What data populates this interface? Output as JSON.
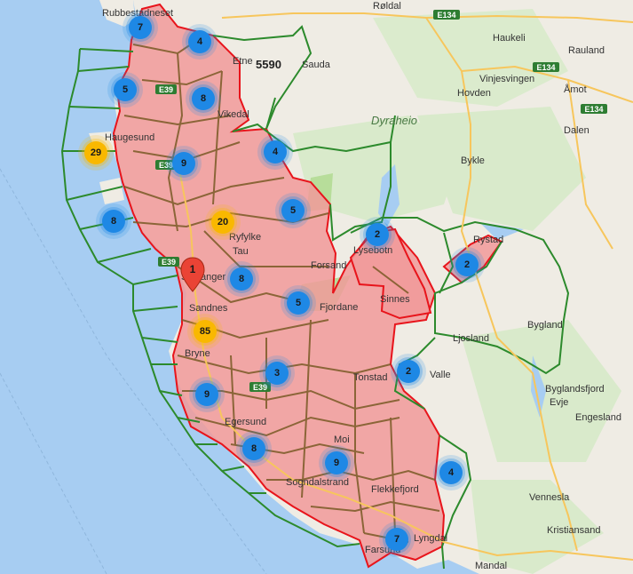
{
  "map": {
    "colors": {
      "sea": "#a7cdf2",
      "land": "#efece4",
      "forest": "#c8e2b4",
      "region_fill": "#f19a9a",
      "red_border": "#e8141b",
      "green_border": "#2c8a2c",
      "cluster_blue": "#1e88e5",
      "cluster_yellow": "#f9b800"
    },
    "count_label": "5590",
    "place_labels": [
      {
        "name": "Rubbestadneset"
      },
      {
        "name": "Røldal"
      },
      {
        "name": "Haukeli"
      },
      {
        "name": "Rauland"
      },
      {
        "name": "Sauda"
      },
      {
        "name": "Etne"
      },
      {
        "name": "Vinjesvingen"
      },
      {
        "name": "Åmot"
      },
      {
        "name": "Hovden"
      },
      {
        "name": "Vikedal"
      },
      {
        "name": "Dyraheio"
      },
      {
        "name": "Dalen"
      },
      {
        "name": "Haugesund"
      },
      {
        "name": "Bykle"
      },
      {
        "name": "Ryfylke"
      },
      {
        "name": "Rystad"
      },
      {
        "name": "Lysebotn"
      },
      {
        "name": "Tau"
      },
      {
        "name": "Forsand"
      },
      {
        "name": "Stavanger"
      },
      {
        "name": "Sandnes"
      },
      {
        "name": "Sinnes"
      },
      {
        "name": "Ljosland"
      },
      {
        "name": "Bygland"
      },
      {
        "name": "Bryne"
      },
      {
        "name": "Tonstad"
      },
      {
        "name": "Valle"
      },
      {
        "name": "Byglandsfjord"
      },
      {
        "name": "Evje"
      },
      {
        "name": "Egersund"
      },
      {
        "name": "Moi"
      },
      {
        "name": "Engesland"
      },
      {
        "name": "Sogndalstrand"
      },
      {
        "name": "Flekkefjord"
      },
      {
        "name": "Vennesla"
      },
      {
        "name": "Lyngdal"
      },
      {
        "name": "Kristiansand"
      },
      {
        "name": "Farsund"
      },
      {
        "name": "Mandal"
      },
      {
        "name": "Fjordane"
      }
    ],
    "road_shields": [
      "E134",
      "E134",
      "E134",
      "E39",
      "E39",
      "E39",
      "E39"
    ],
    "marker_label": "1",
    "clusters": [
      {
        "count": "7",
        "color": "blue"
      },
      {
        "count": "4",
        "color": "blue"
      },
      {
        "count": "5",
        "color": "blue"
      },
      {
        "count": "8",
        "color": "blue"
      },
      {
        "count": "29",
        "color": "yellow"
      },
      {
        "count": "9",
        "color": "blue"
      },
      {
        "count": "4",
        "color": "blue"
      },
      {
        "count": "8",
        "color": "blue"
      },
      {
        "count": "20",
        "color": "yellow"
      },
      {
        "count": "5",
        "color": "blue"
      },
      {
        "count": "2",
        "color": "blue"
      },
      {
        "count": "2",
        "color": "blue"
      },
      {
        "count": "8",
        "color": "blue"
      },
      {
        "count": "5",
        "color": "blue"
      },
      {
        "count": "85",
        "color": "yellow"
      },
      {
        "count": "3",
        "color": "blue"
      },
      {
        "count": "2",
        "color": "blue"
      },
      {
        "count": "9",
        "color": "blue"
      },
      {
        "count": "8",
        "color": "blue"
      },
      {
        "count": "9",
        "color": "blue"
      },
      {
        "count": "4",
        "color": "blue"
      },
      {
        "count": "7",
        "color": "blue"
      }
    ]
  }
}
